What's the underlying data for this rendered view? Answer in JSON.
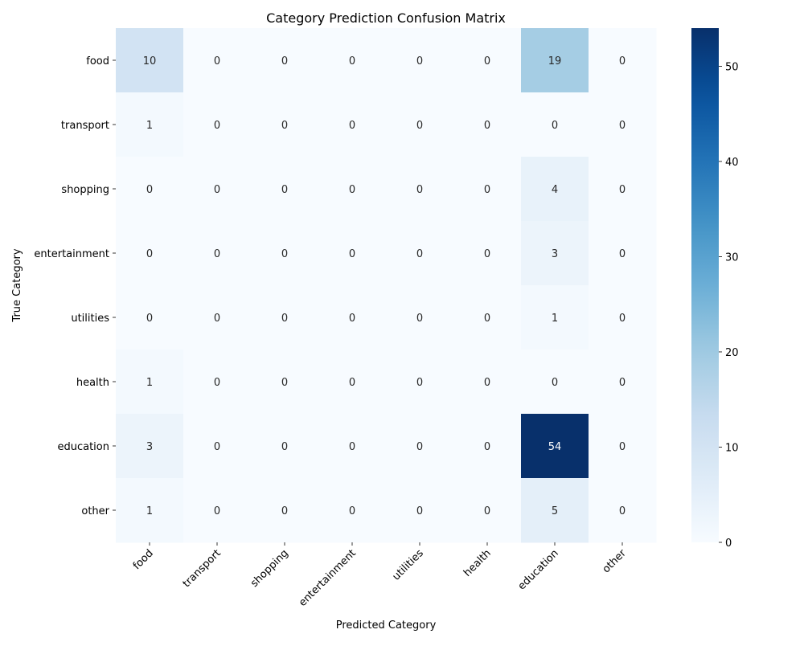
{
  "chart_data": {
    "type": "heatmap",
    "title": "Category Prediction Confusion Matrix",
    "xlabel": "Predicted Category",
    "ylabel": "True Category",
    "x_categories": [
      "food",
      "transport",
      "shopping",
      "entertainment",
      "utilities",
      "health",
      "education",
      "other"
    ],
    "y_categories": [
      "food",
      "transport",
      "shopping",
      "entertainment",
      "utilities",
      "health",
      "education",
      "other"
    ],
    "values": [
      [
        10,
        0,
        0,
        0,
        0,
        0,
        19,
        0
      ],
      [
        1,
        0,
        0,
        0,
        0,
        0,
        0,
        0
      ],
      [
        0,
        0,
        0,
        0,
        0,
        0,
        4,
        0
      ],
      [
        0,
        0,
        0,
        0,
        0,
        0,
        3,
        0
      ],
      [
        0,
        0,
        0,
        0,
        0,
        0,
        1,
        0
      ],
      [
        1,
        0,
        0,
        0,
        0,
        0,
        0,
        0
      ],
      [
        3,
        0,
        0,
        0,
        0,
        0,
        54,
        0
      ],
      [
        1,
        0,
        0,
        0,
        0,
        0,
        5,
        0
      ]
    ],
    "colormap": "Blues",
    "value_range": [
      0,
      54
    ],
    "colorbar_ticks": [
      0,
      10,
      20,
      30,
      40,
      50
    ],
    "annotate_cells": true,
    "grid": false
  }
}
